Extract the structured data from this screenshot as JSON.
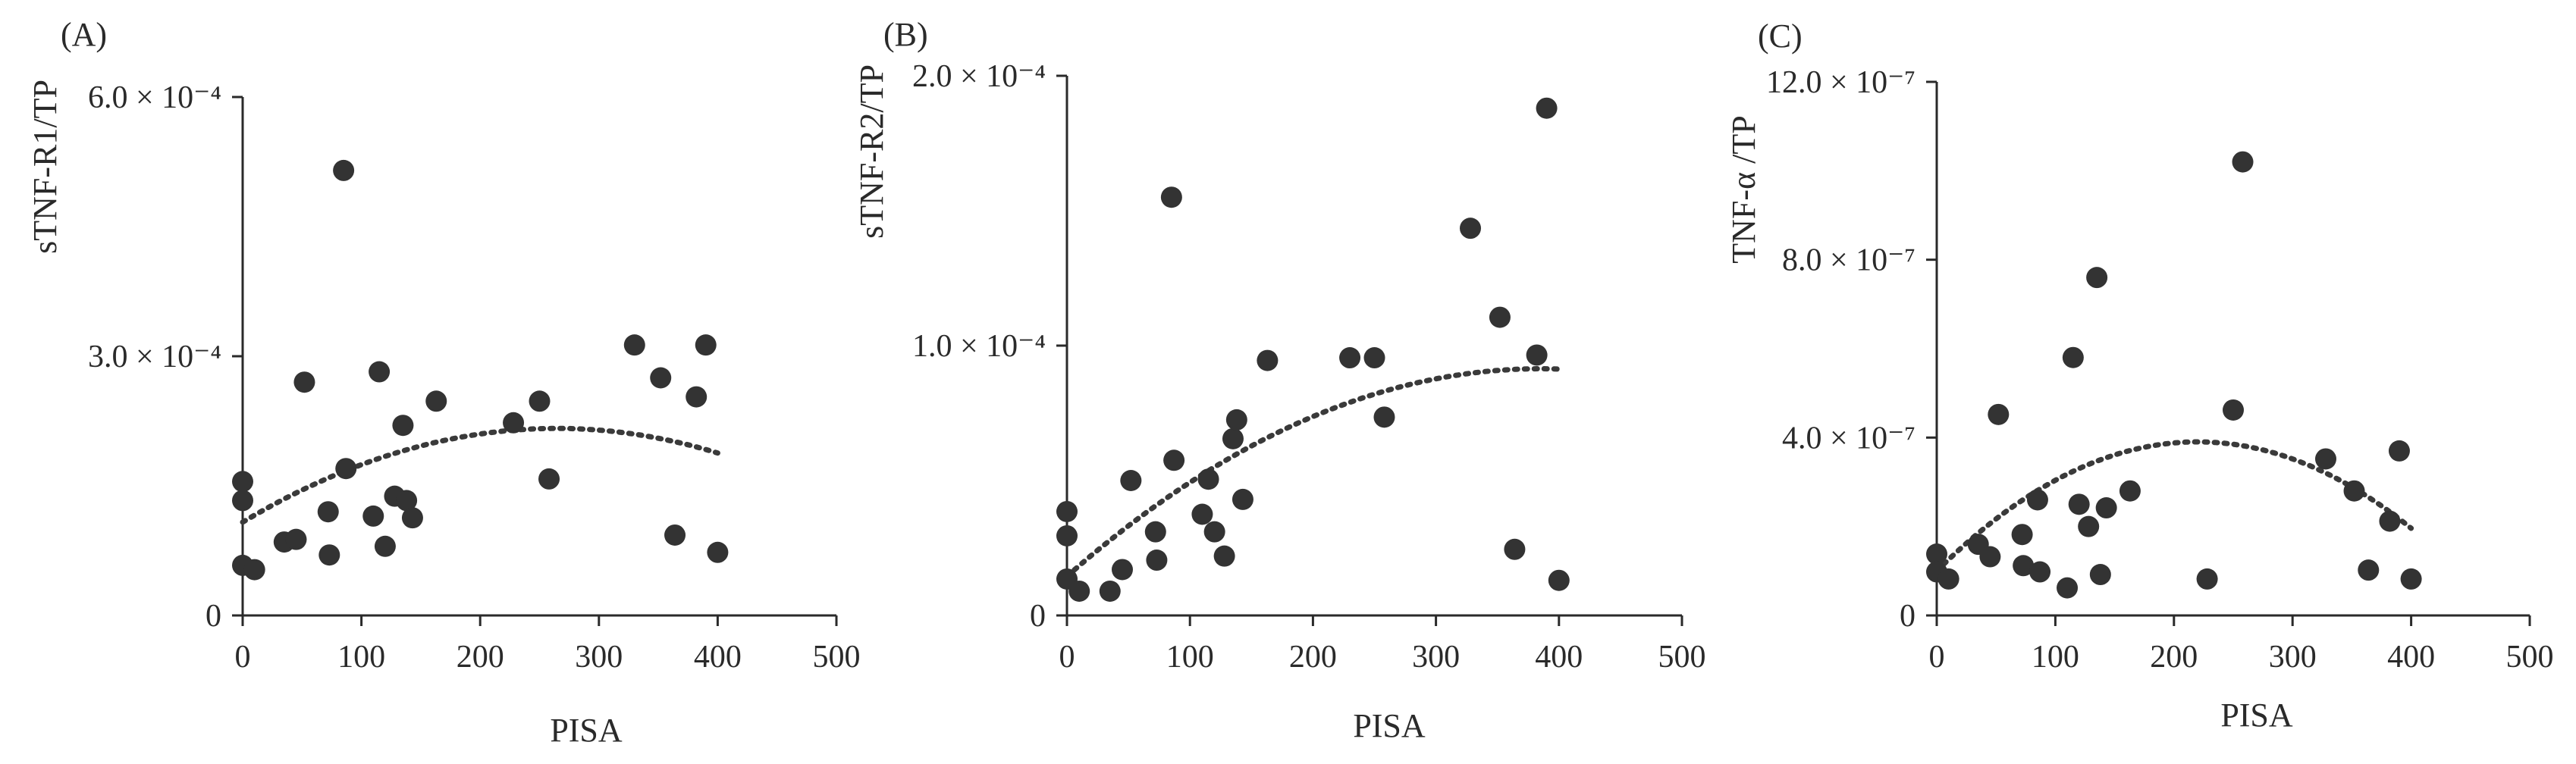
{
  "chart_data": [
    {
      "type": "scatter",
      "panel_label": "(A)",
      "xlabel": "PISA",
      "ylabel": "sTNF-R1/TP",
      "xlim": [
        0,
        500
      ],
      "ylim": [
        0,
        0.0006
      ],
      "x_ticks": [
        {
          "value": 0,
          "label": "0"
        },
        {
          "value": 100,
          "label": "100"
        },
        {
          "value": 200,
          "label": "200"
        },
        {
          "value": 300,
          "label": "300"
        },
        {
          "value": 400,
          "label": "400"
        },
        {
          "value": 500,
          "label": "500"
        }
      ],
      "y_ticks": [
        {
          "value": 0,
          "label": "0"
        },
        {
          "value": 0.0003,
          "label": "3.0 × 10⁻⁴"
        },
        {
          "value": 0.0006,
          "label": "6.0 × 10⁻⁴"
        }
      ],
      "points": [
        [
          0,
          0.000155
        ],
        [
          0,
          0.000133
        ],
        [
          0,
          5.8e-05
        ],
        [
          10,
          5.3e-05
        ],
        [
          35,
          8.5e-05
        ],
        [
          45,
          8.8e-05
        ],
        [
          52,
          0.00027
        ],
        [
          72,
          0.00012
        ],
        [
          73,
          7e-05
        ],
        [
          85,
          0.000515
        ],
        [
          87,
          0.00017
        ],
        [
          110,
          0.000115
        ],
        [
          115,
          0.000282
        ],
        [
          120,
          8e-05
        ],
        [
          128,
          0.000138
        ],
        [
          135,
          0.00022
        ],
        [
          138,
          0.000133
        ],
        [
          143,
          0.000113
        ],
        [
          163,
          0.000248
        ],
        [
          228,
          0.000223
        ],
        [
          250,
          0.000248
        ],
        [
          258,
          0.000158
        ],
        [
          330,
          0.000313
        ],
        [
          352,
          0.000275
        ],
        [
          364,
          9.3e-05
        ],
        [
          382,
          0.000253
        ],
        [
          390,
          0.000313
        ],
        [
          400,
          7.3e-05
        ]
      ],
      "trend": {
        "x_range": [
          0,
          400
        ],
        "coefficients": [
          0.000108,
          8.2e-07,
          -1.55e-09
        ]
      }
    },
    {
      "type": "scatter",
      "panel_label": "(B)",
      "xlabel": "PISA",
      "ylabel": "sTNF-R2/TP",
      "xlim": [
        0,
        500
      ],
      "ylim": [
        0,
        0.0002
      ],
      "x_ticks": [
        {
          "value": 0,
          "label": "0"
        },
        {
          "value": 100,
          "label": "100"
        },
        {
          "value": 200,
          "label": "200"
        },
        {
          "value": 300,
          "label": "300"
        },
        {
          "value": 400,
          "label": "400"
        },
        {
          "value": 500,
          "label": "500"
        }
      ],
      "y_ticks": [
        {
          "value": 0,
          "label": "0"
        },
        {
          "value": 0.0001,
          "label": "1.0 × 10⁻⁴"
        },
        {
          "value": 0.0002,
          "label": "2.0 × 10⁻⁴"
        }
      ],
      "points": [
        [
          0,
          3.85e-05
        ],
        [
          0,
          2.95e-05
        ],
        [
          0,
          1.35e-05
        ],
        [
          10,
          9e-06
        ],
        [
          35,
          9e-06
        ],
        [
          45,
          1.7e-05
        ],
        [
          52,
          5e-05
        ],
        [
          72,
          3.1e-05
        ],
        [
          73,
          2.05e-05
        ],
        [
          85,
          0.000155
        ],
        [
          87,
          5.75e-05
        ],
        [
          110,
          3.75e-05
        ],
        [
          115,
          5.05e-05
        ],
        [
          120,
          3.1e-05
        ],
        [
          128,
          2.2e-05
        ],
        [
          135,
          6.55e-05
        ],
        [
          138,
          7.25e-05
        ],
        [
          143,
          4.3e-05
        ],
        [
          163,
          9.45e-05
        ],
        [
          230,
          9.55e-05
        ],
        [
          250,
          9.55e-05
        ],
        [
          258,
          7.35e-05
        ],
        [
          328,
          0.0001435
        ],
        [
          352,
          0.0001105
        ],
        [
          364,
          2.45e-05
        ],
        [
          382,
          9.65e-05
        ],
        [
          390,
          0.000188
        ],
        [
          400,
          1.3e-05
        ]
      ],
      "trend": {
        "x_range": [
          0,
          400
        ],
        "coefficients": [
          1.45e-05,
          4e-07,
          -5.2e-10
        ]
      }
    },
    {
      "type": "scatter",
      "panel_label": "(C)",
      "xlabel": "PISA",
      "ylabel": "TNF-α /TP",
      "xlim": [
        0,
        500
      ],
      "ylim": [
        0,
        1.2e-06
      ],
      "x_ticks": [
        {
          "value": 0,
          "label": "0"
        },
        {
          "value": 100,
          "label": "100"
        },
        {
          "value": 200,
          "label": "200"
        },
        {
          "value": 300,
          "label": "300"
        },
        {
          "value": 400,
          "label": "400"
        },
        {
          "value": 500,
          "label": "500"
        }
      ],
      "y_ticks": [
        {
          "value": 0,
          "label": "0"
        },
        {
          "value": 4e-07,
          "label": "4.0 × 10⁻⁷"
        },
        {
          "value": 8e-07,
          "label": "8.0 × 10⁻⁷"
        },
        {
          "value": 1.2e-06,
          "label": "12.0 × 10⁻⁷"
        }
      ],
      "points": [
        [
          0,
          1.38e-07
        ],
        [
          0,
          9.8e-08
        ],
        [
          10,
          8.2e-08
        ],
        [
          35,
          1.6e-07
        ],
        [
          45,
          1.32e-07
        ],
        [
          52,
          4.52e-07
        ],
        [
          72,
          1.82e-07
        ],
        [
          73,
          1.12e-07
        ],
        [
          85,
          2.6e-07
        ],
        [
          87,
          9.8e-08
        ],
        [
          110,
          6.2e-08
        ],
        [
          115,
          5.8e-07
        ],
        [
          120,
          2.5e-07
        ],
        [
          128,
          2e-07
        ],
        [
          135,
          7.6e-07
        ],
        [
          138,
          9.2e-08
        ],
        [
          143,
          2.42e-07
        ],
        [
          163,
          2.8e-07
        ],
        [
          228,
          8.2e-08
        ],
        [
          250,
          4.62e-07
        ],
        [
          258,
          1.02e-06
        ],
        [
          328,
          3.52e-07
        ],
        [
          352,
          2.8e-07
        ],
        [
          364,
          1.02e-07
        ],
        [
          382,
          2.12e-07
        ],
        [
          390,
          3.7e-07
        ],
        [
          400,
          8.2e-08
        ]
      ],
      "trend": {
        "x_range": [
          0,
          400
        ],
        "coefficients": [
          1e-07,
          2.64e-09,
          -6e-12
        ]
      }
    }
  ]
}
